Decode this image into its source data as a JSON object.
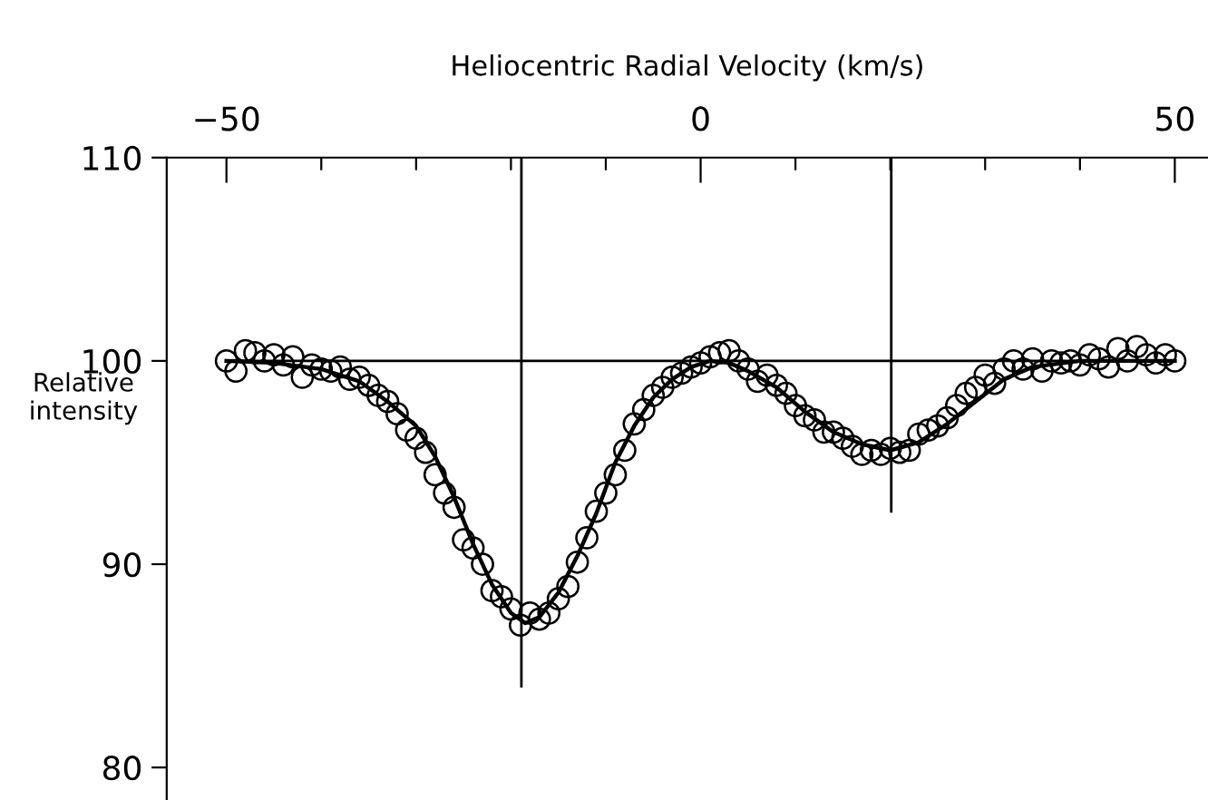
{
  "chart_data": {
    "type": "scatter",
    "xlabel": "Heliocentric Radial Velocity (km/s)",
    "ylabel": "Relative\nintensity",
    "xlim": [
      -56.3,
      53.5
    ],
    "xticks": [
      -50,
      {
        "value": -40,
        "label": null
      },
      {
        "value": -30,
        "label": null
      },
      {
        "value": -20,
        "label": null
      },
      {
        "value": -10,
        "label": null
      },
      0,
      {
        "value": 10,
        "label": null
      },
      {
        "value": 20,
        "label": null
      },
      {
        "value": 30,
        "label": null
      },
      {
        "value": 40,
        "label": null
      },
      50
    ],
    "ylim": [
      78.4,
      110
    ],
    "yticks": [
      80,
      90,
      100,
      110
    ],
    "grid": false,
    "series": [
      {
        "marker": "circle",
        "color": "#000000",
        "x": [
          -50,
          -49,
          -48,
          -47,
          -46,
          -45,
          -44,
          -43,
          -42,
          -41,
          -40,
          -39,
          -38,
          -37,
          -36,
          -35,
          -34,
          -33,
          -32,
          -31,
          -30,
          -29,
          -28,
          -27,
          -26,
          -25,
          -24,
          -23,
          -22,
          -21,
          -20,
          -19,
          -18,
          -17,
          -16,
          -15,
          -14,
          -13,
          -12,
          -11,
          -10,
          -9,
          -8,
          -7,
          -6,
          -5,
          -4,
          -3,
          -2,
          -1,
          0,
          1,
          2,
          3,
          4,
          5,
          6,
          7,
          8,
          9,
          10,
          11,
          12,
          13,
          14,
          15,
          16,
          17,
          18,
          19,
          20,
          21,
          22,
          23,
          24,
          25,
          26,
          27,
          28,
          29,
          30,
          31,
          32,
          33,
          34,
          35,
          36,
          37,
          38,
          39,
          40,
          41,
          42,
          43,
          44,
          45,
          46,
          47,
          48,
          49,
          50
        ],
        "values": [
          100.0,
          99.5,
          100.5,
          100.4,
          100.0,
          100.3,
          99.8,
          100.2,
          99.2,
          99.8,
          99.6,
          99.5,
          99.7,
          99.1,
          99.2,
          98.8,
          98.3,
          98.0,
          97.4,
          96.6,
          96.2,
          95.5,
          94.4,
          93.5,
          92.8,
          91.2,
          90.8,
          90.0,
          88.7,
          88.4,
          87.8,
          87.0,
          87.6,
          87.3,
          87.6,
          88.3,
          88.9,
          90.1,
          91.3,
          92.6,
          93.5,
          94.4,
          95.6,
          96.9,
          97.6,
          98.3,
          98.7,
          99.2,
          99.4,
          99.7,
          99.9,
          100.2,
          100.4,
          100.5,
          100.0,
          99.6,
          99.0,
          99.3,
          98.8,
          98.4,
          97.8,
          97.3,
          97.1,
          96.5,
          96.5,
          96.2,
          95.8,
          95.4,
          95.6,
          95.4,
          95.7,
          95.5,
          95.6,
          96.4,
          96.6,
          96.8,
          97.2,
          97.8,
          98.4,
          98.7,
          99.3,
          98.9,
          99.6,
          100.0,
          99.6,
          100.1,
          99.5,
          100.0,
          99.9,
          100.0,
          99.8,
          100.3,
          100.1,
          99.7,
          100.6,
          100.0,
          100.7,
          100.3,
          99.9,
          100.3,
          100.0
        ]
      },
      {
        "type": "line",
        "marker": "none",
        "line_style": "solid",
        "color": "#000000",
        "x": [
          -50,
          -45,
          -40,
          -36,
          -33,
          -30,
          -28,
          -26,
          -24,
          -22,
          -20,
          -18.5,
          -17,
          -15,
          -13,
          -11,
          -9,
          -7,
          -5,
          -3,
          -1,
          1,
          3,
          5,
          8,
          11,
          14,
          17,
          20,
          23,
          26,
          29,
          32,
          35,
          40,
          45,
          50
        ],
        "values": [
          100,
          99.9,
          99.6,
          99.0,
          98.0,
          96.8,
          95.3,
          93.3,
          91.0,
          89.0,
          87.6,
          87.1,
          87.4,
          88.6,
          90.4,
          92.5,
          95.0,
          96.8,
          98.2,
          99.1,
          99.7,
          100.0,
          99.9,
          99.5,
          98.7,
          97.5,
          96.5,
          95.9,
          95.6,
          96.0,
          96.9,
          98.0,
          99.1,
          99.7,
          100,
          100,
          100
        ]
      },
      {
        "type": "line",
        "marker": "none",
        "line_style": "solid",
        "color": "#000000",
        "x": [
          -50,
          50
        ],
        "values": [
          100,
          100
        ]
      },
      {
        "type": "line",
        "marker": "none",
        "line_style": "solid",
        "color": "#000000",
        "x": [
          -18.9,
          -18.9
        ],
        "values": [
          110,
          84.0
        ]
      },
      {
        "type": "line",
        "marker": "none",
        "line_style": "solid",
        "color": "#000000",
        "x": [
          20.1,
          20.1
        ],
        "values": [
          110,
          92.6
        ]
      }
    ]
  }
}
